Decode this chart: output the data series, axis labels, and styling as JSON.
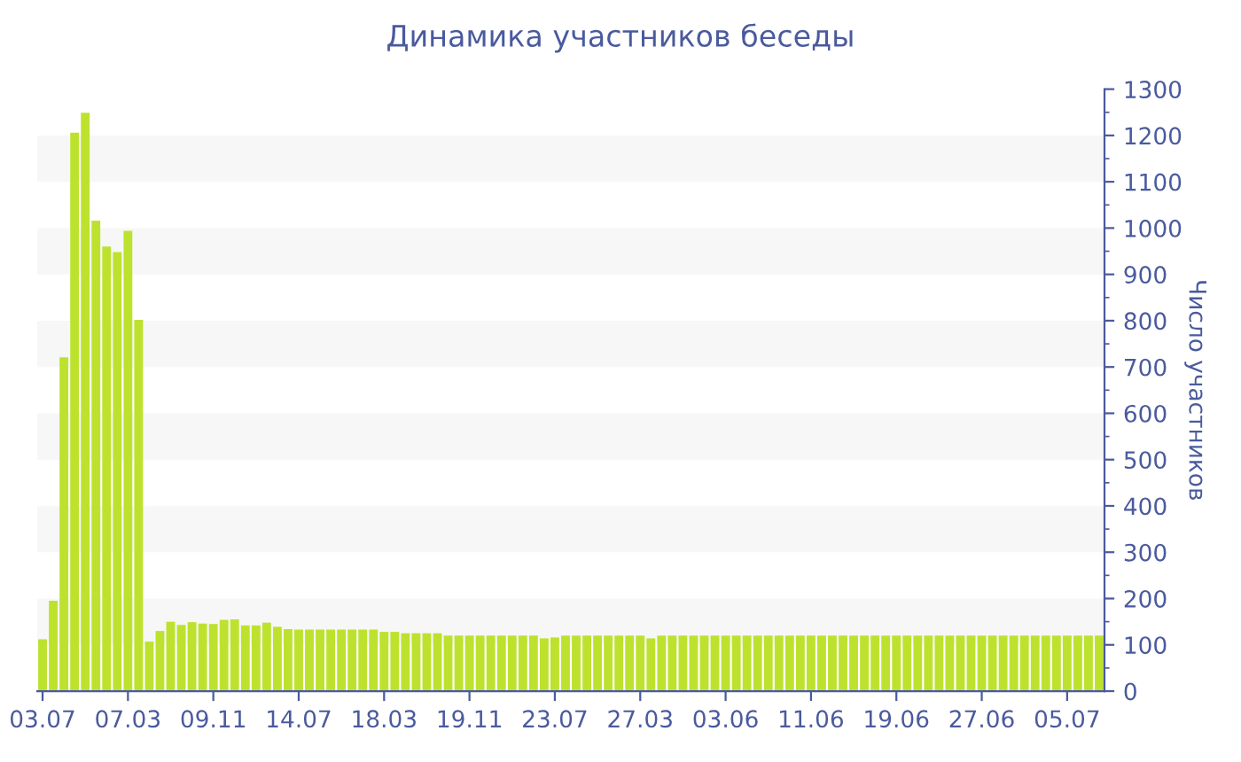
{
  "chart_data": {
    "type": "bar",
    "title": "Динамика участников беседы",
    "ylabel": "Число участников",
    "categories": [
      "03.07",
      null,
      null,
      null,
      null,
      null,
      null,
      null,
      "07.03",
      null,
      null,
      null,
      null,
      null,
      null,
      null,
      "09.11",
      null,
      null,
      null,
      null,
      null,
      null,
      null,
      "14.07",
      null,
      null,
      null,
      null,
      null,
      null,
      null,
      "18.03",
      null,
      null,
      null,
      null,
      null,
      null,
      null,
      "19.11",
      null,
      null,
      null,
      null,
      null,
      null,
      null,
      "23.07",
      null,
      null,
      null,
      null,
      null,
      null,
      null,
      "27.03",
      null,
      null,
      null,
      null,
      null,
      null,
      null,
      "03.06",
      null,
      null,
      null,
      null,
      null,
      null,
      null,
      "11.06",
      null,
      null,
      null,
      null,
      null,
      null,
      null,
      "19.06",
      null,
      null,
      null,
      null,
      null,
      null,
      null,
      "27.06",
      null,
      null,
      null,
      null,
      null,
      null,
      null,
      "05.07",
      null,
      null,
      null
    ],
    "values": [
      112,
      195,
      721,
      1206,
      1249,
      1016,
      960,
      948,
      994,
      802,
      107,
      130,
      150,
      143,
      149,
      146,
      145,
      154,
      155,
      142,
      142,
      148,
      139,
      134,
      133,
      133,
      133,
      133,
      133,
      133,
      133,
      133,
      128,
      128,
      125,
      125,
      125,
      125,
      120,
      120,
      120,
      120,
      120,
      120,
      120,
      120,
      120,
      114,
      116,
      120,
      120,
      120,
      120,
      120,
      120,
      120,
      120,
      114,
      120,
      120,
      120,
      120,
      120,
      120,
      120,
      120,
      120,
      120,
      120,
      120,
      120,
      120,
      120,
      120,
      120,
      120,
      120,
      120,
      120,
      120,
      120,
      120,
      120,
      120,
      120,
      120,
      120,
      120,
      120,
      120,
      120,
      120,
      120,
      120,
      120,
      120,
      120,
      120,
      120,
      120
    ],
    "color": "#bde22e",
    "ylim": [
      0,
      1300
    ],
    "yticks": [
      0,
      100,
      200,
      300,
      400,
      500,
      600,
      700,
      800,
      900,
      1000,
      1100,
      1200,
      1300
    ],
    "bands": [
      {
        "axis": "y",
        "from": 100,
        "to": 200,
        "color": "#f7f7f7"
      },
      {
        "axis": "y",
        "from": 300,
        "to": 400,
        "color": "#f7f7f7"
      },
      {
        "axis": "y",
        "from": 500,
        "to": 600,
        "color": "#f7f7f7"
      },
      {
        "axis": "y",
        "from": 700,
        "to": 800,
        "color": "#f7f7f7"
      },
      {
        "axis": "y",
        "from": 900,
        "to": 1000,
        "color": "#f7f7f7"
      },
      {
        "axis": "y",
        "from": 1100,
        "to": 1200,
        "color": "#f7f7f7"
      }
    ],
    "grid": false,
    "legend": false
  }
}
